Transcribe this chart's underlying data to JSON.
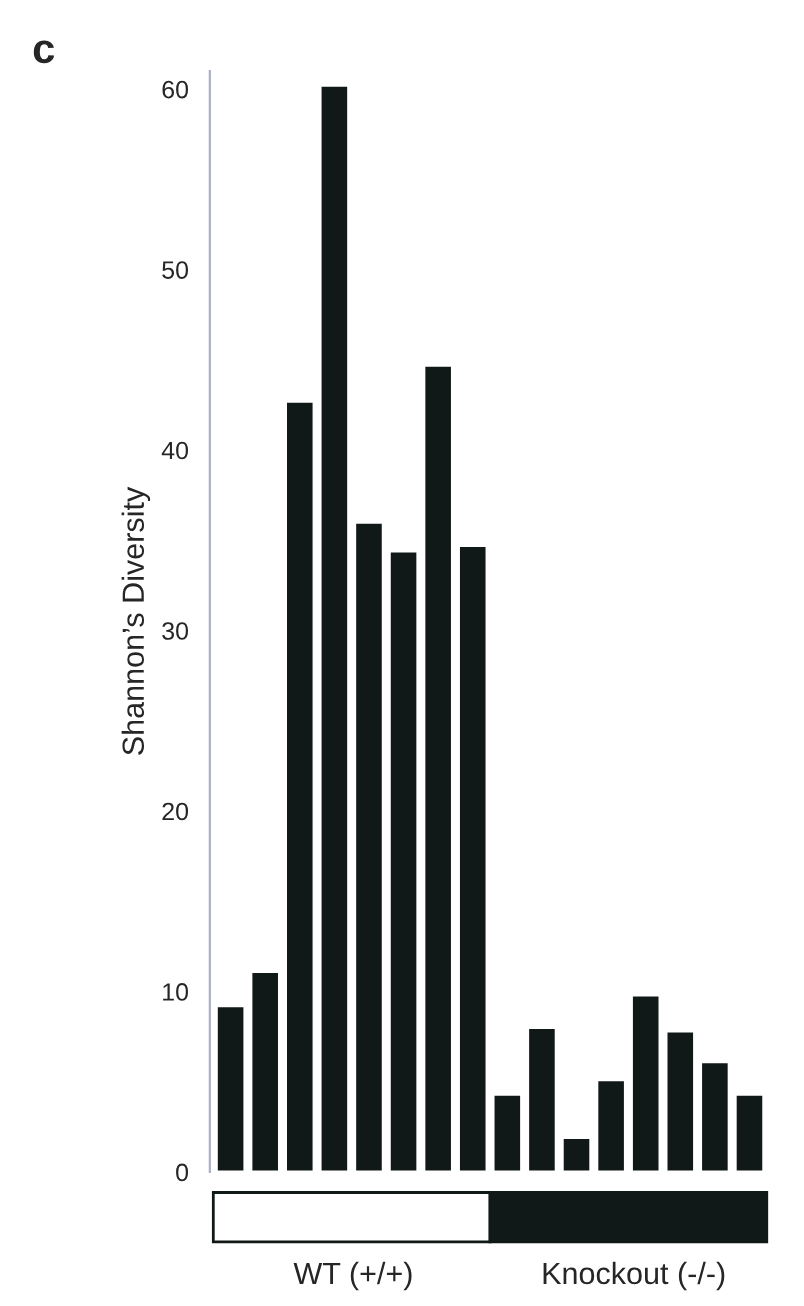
{
  "chart_data": {
    "type": "bar",
    "title": "c",
    "ylabel": "Shannon’s Diversity",
    "categories": [
      null,
      null,
      null,
      null,
      null,
      null,
      null,
      null,
      null,
      null,
      null,
      null,
      null,
      null,
      null,
      null
    ],
    "values": [
      9.2,
      11.1,
      42.7,
      60.2,
      36.0,
      34.4,
      44.7,
      34.7,
      4.3,
      8.0,
      1.9,
      5.1,
      9.8,
      7.8,
      6.1,
      4.3
    ],
    "color": "#111818",
    "ylim": [
      0,
      61
    ],
    "yticks": [
      0,
      10,
      20,
      30,
      40,
      50,
      60
    ],
    "grid": false,
    "tick_labels": "y",
    "annotations": [
      "WT (+/+)",
      "Knockout (-/-)"
    ]
  }
}
